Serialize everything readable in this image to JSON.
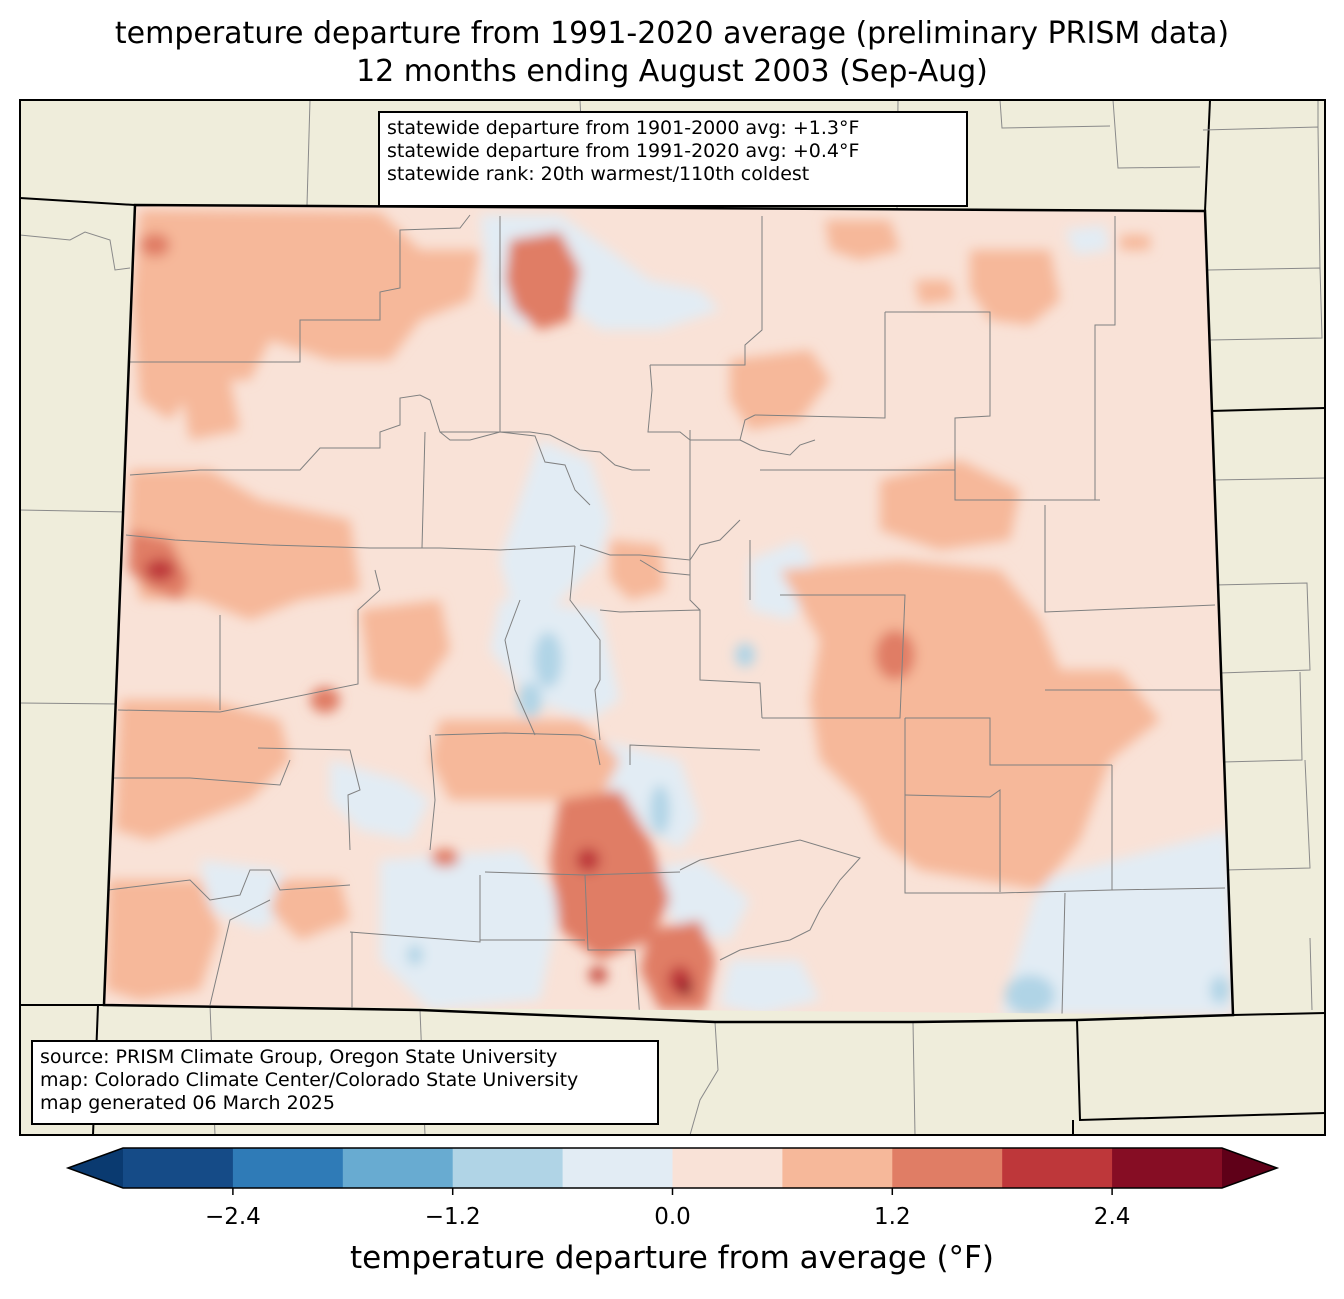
{
  "title_line1": "temperature departure from 1991-2020 average (preliminary PRISM data)",
  "title_line2": "12 months ending August 2003 (Sep-Aug)",
  "stats": {
    "line1": "statewide departure from 1901-2000 avg: +1.3°F",
    "line2": "statewide departure from 1991-2020 avg: +0.4°F",
    "line3": "statewide rank: 20th warmest/110th coldest"
  },
  "credits": {
    "line1": "source: PRISM Climate Group, Oregon State University",
    "line2": "map: Colorado Climate Center/Colorado State University",
    "line3": "map generated 06 March 2025"
  },
  "colorbar": {
    "label": "temperature departure from average (°F)",
    "ticks": [
      {
        "value": -2.4,
        "text": "−2.4"
      },
      {
        "value": -1.2,
        "text": "−1.2"
      },
      {
        "value": 0.0,
        "text": "0.0"
      },
      {
        "value": 1.2,
        "text": "1.2"
      },
      {
        "value": 2.4,
        "text": "2.4"
      }
    ],
    "range": [
      -3.0,
      3.0
    ],
    "step": 0.6,
    "extend": "both",
    "colors": [
      "#0a3a70",
      "#154b87",
      "#2f7bb7",
      "#68abd1",
      "#b0d4e6",
      "#e2ecf4",
      "#f9e2d7",
      "#f6b89a",
      "#e07d65",
      "#be373a",
      "#860d24",
      "#5f0018"
    ]
  },
  "map_colors": {
    "background": "#efeddb",
    "state_border": "#000000",
    "county_lines": "#7f7f7f"
  }
}
